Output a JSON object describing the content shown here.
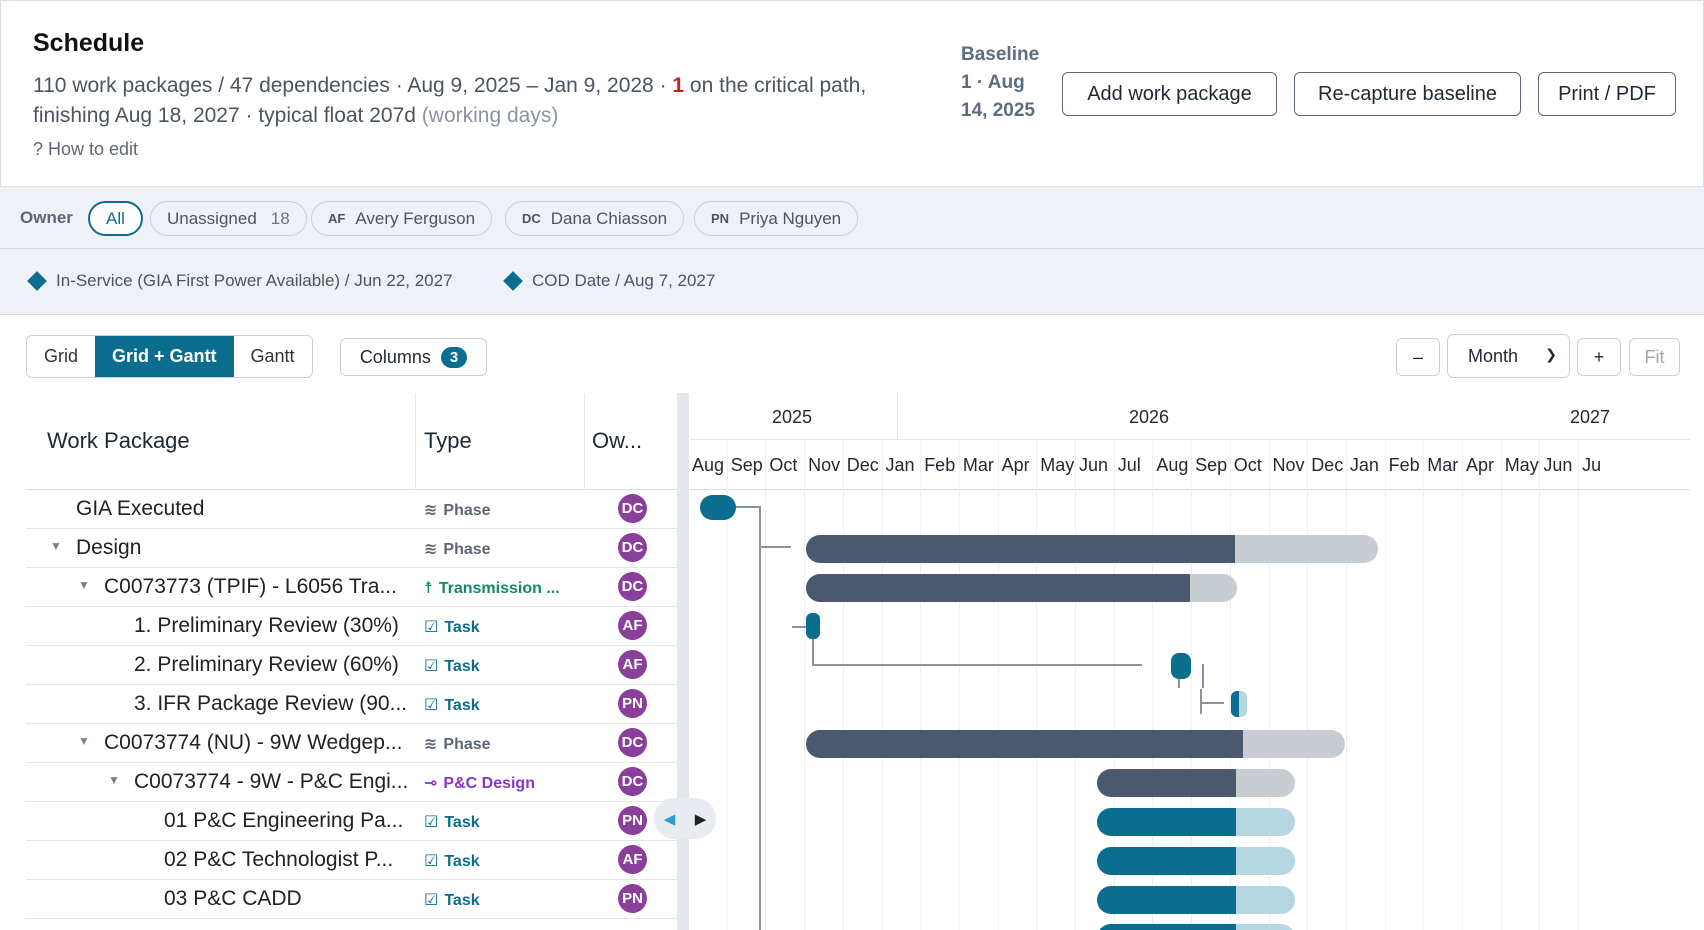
{
  "header": {
    "title": "Schedule",
    "summary_prefix": "110 work packages / 47 dependencies · Aug 9, 2025 – Jan 9, 2028 · ",
    "critical_count": "1",
    "summary_mid": " on the critical path, finishing Aug 18, 2027 · typical float 207d ",
    "summary_muted": "(working days)",
    "how_to_edit": "? How to edit",
    "baseline_label": "Baseline",
    "baseline_value": "1 · Aug 14, 2025",
    "add_button": "Add work package",
    "recapture_button": "Re-capture baseline",
    "print_button": "Print / PDF"
  },
  "owner_filter": {
    "label": "Owner",
    "pills": [
      {
        "label": "All",
        "active": true
      },
      {
        "label": "Unassigned",
        "count": "18"
      },
      {
        "initials": "AF",
        "label": "Avery Ferguson"
      },
      {
        "initials": "DC",
        "label": "Dana Chiasson"
      },
      {
        "initials": "PN",
        "label": "Priya Nguyen"
      }
    ]
  },
  "milestones": [
    {
      "label": "In-Service (GIA First Power Available) / Jun 22, 2027"
    },
    {
      "label": "COD Date / Aug 7, 2027"
    }
  ],
  "toolbar": {
    "views": [
      "Grid",
      "Grid + Gantt",
      "Gantt"
    ],
    "active_view": "Grid + Gantt",
    "columns_label": "Columns",
    "columns_count": "3",
    "zoom_out": "–",
    "zoom_level": "Month",
    "zoom_in": "+",
    "fit": "Fit"
  },
  "grid": {
    "columns": [
      "Work Package",
      "Type",
      "Ow..."
    ],
    "rows": [
      {
        "name": "GIA Executed",
        "type": "Phase",
        "type_icon": "layers-icon",
        "owner": "DC",
        "depth": 0,
        "expandable": false
      },
      {
        "name": "Design",
        "type": "Phase",
        "type_icon": "layers-icon",
        "owner": "DC",
        "depth": 0,
        "expandable": true
      },
      {
        "name": "C0073773 (TPIF) - L6056 Tra...",
        "type": "Transmission ...",
        "type_icon": "tower-icon",
        "owner": "DC",
        "depth": 1,
        "expandable": true
      },
      {
        "name": "1. Preliminary Review (30%)",
        "type": "Task",
        "type_icon": "checkbox-icon",
        "owner": "AF",
        "depth": 2,
        "expandable": false
      },
      {
        "name": "2. Preliminary Review (60%)",
        "type": "Task",
        "type_icon": "checkbox-icon",
        "owner": "AF",
        "depth": 2,
        "expandable": false
      },
      {
        "name": "3. IFR Package Review (90...",
        "type": "Task",
        "type_icon": "checkbox-icon",
        "owner": "PN",
        "depth": 2,
        "expandable": false
      },
      {
        "name": "C0073774 (NU) - 9W Wedgep...",
        "type": "Phase",
        "type_icon": "layers-icon",
        "owner": "DC",
        "depth": 1,
        "expandable": true
      },
      {
        "name": "C0073774 - 9W - P&C Engi...",
        "type": "P&C Design",
        "type_icon": "chip-icon",
        "owner": "DC",
        "depth": 2,
        "expandable": true
      },
      {
        "name": "01 P&C Engineering Pa...",
        "type": "Task",
        "type_icon": "checkbox-icon",
        "owner": "PN",
        "depth": 3,
        "expandable": false
      },
      {
        "name": "02 P&C Technologist P...",
        "type": "Task",
        "type_icon": "checkbox-icon",
        "owner": "AF",
        "depth": 3,
        "expandable": false
      },
      {
        "name": "03 P&C CADD",
        "type": "Task",
        "type_icon": "checkbox-icon",
        "owner": "PN",
        "depth": 3,
        "expandable": false
      }
    ]
  },
  "gantt": {
    "years": [
      "2025",
      "2026",
      "2027"
    ],
    "months": [
      "Aug",
      "Sep",
      "Oct",
      "Nov",
      "Dec",
      "Jan",
      "Feb",
      "Mar",
      "Apr",
      "May",
      "Jun",
      "Jul",
      "Aug",
      "Sep",
      "Oct",
      "Nov",
      "Dec",
      "Jan",
      "Feb",
      "Mar",
      "Apr",
      "May",
      "Jun",
      "Ju"
    ]
  },
  "colors": {
    "accent": "#0b6e8e",
    "critical": "#c81e1e",
    "avatar": "#8a3f9b",
    "phase_bar": "#4a596e",
    "task_bar": "#0b6e8e"
  }
}
